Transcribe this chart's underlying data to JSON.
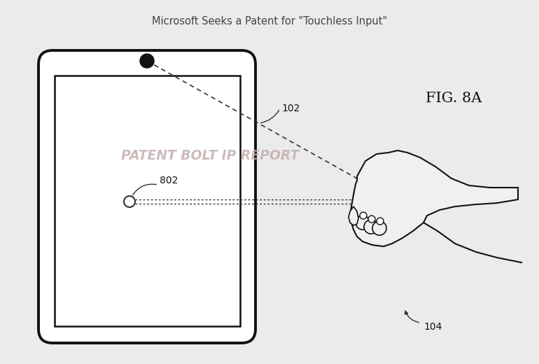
{
  "title": "Microsoft Seeks a Patent for \"Touchless Input\"",
  "fig_label": "FIG. 8A",
  "watermark": "PATENT BOLT IP REPORT",
  "label_102": "102",
  "label_802": "802",
  "label_104": "104",
  "bg_color": "#ebebeb",
  "tablet_outer_color": "#ffffff",
  "tablet_border_color": "#111111",
  "screen_color": "#ffffff",
  "screen_border_color": "#111111",
  "hand_fill": "#f2f0ee",
  "hand_line": "#111111",
  "line_color": "#333333",
  "watermark_color": "#c4b0b0",
  "title_color": "#444444",
  "label_color": "#111111",
  "cam_color": "#111111"
}
